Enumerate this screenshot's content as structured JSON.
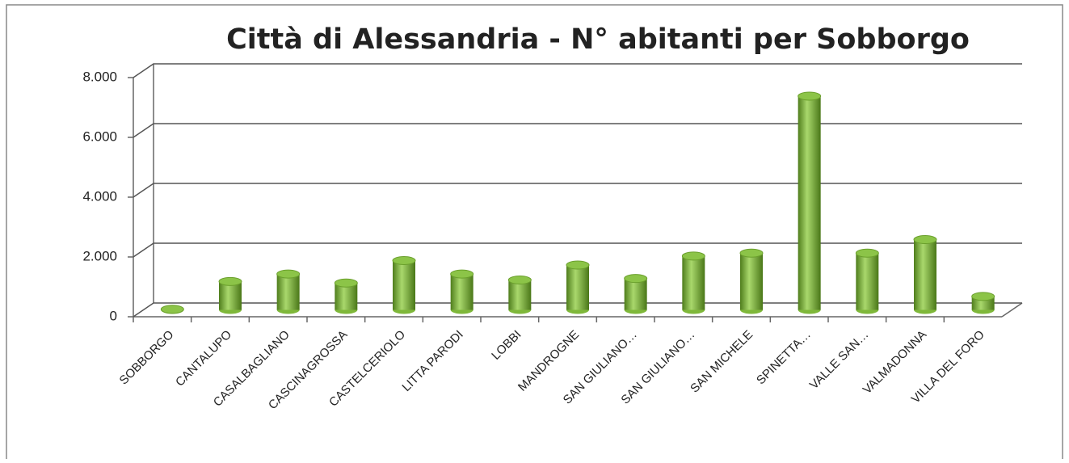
{
  "chart_data": {
    "type": "bar",
    "title": "Città di Alessandria - N° abitanti per Sobborgo",
    "categories": [
      "SOBBORGO",
      "CANTALUPO",
      "CASALBAGLIANO",
      "CASCINAGROSSA",
      "CASTELCERIOLO",
      "LITTA PARODI",
      "LOBBI",
      "MANDROGNE",
      "SAN GIULIANO…",
      "SAN GIULIANO…",
      "SAN MICHELE",
      "SPINETTA…",
      "VALLE SAN…",
      "VALMADONNA",
      "VILLA DEL FORO"
    ],
    "values": [
      20,
      950,
      1200,
      900,
      1650,
      1200,
      1000,
      1500,
      1050,
      1800,
      1900,
      7150,
      1900,
      2350,
      450
    ],
    "color": "#7fb83a",
    "ylim": [
      0,
      8000
    ],
    "yticks": [
      0,
      {
        "value": 2000,
        "label": "2.000"
      },
      {
        "value": 4000,
        "label": "4.000"
      },
      {
        "value": 6000,
        "label": "6.000"
      },
      {
        "value": 8000,
        "label": "8.000"
      }
    ],
    "grid": true
  }
}
